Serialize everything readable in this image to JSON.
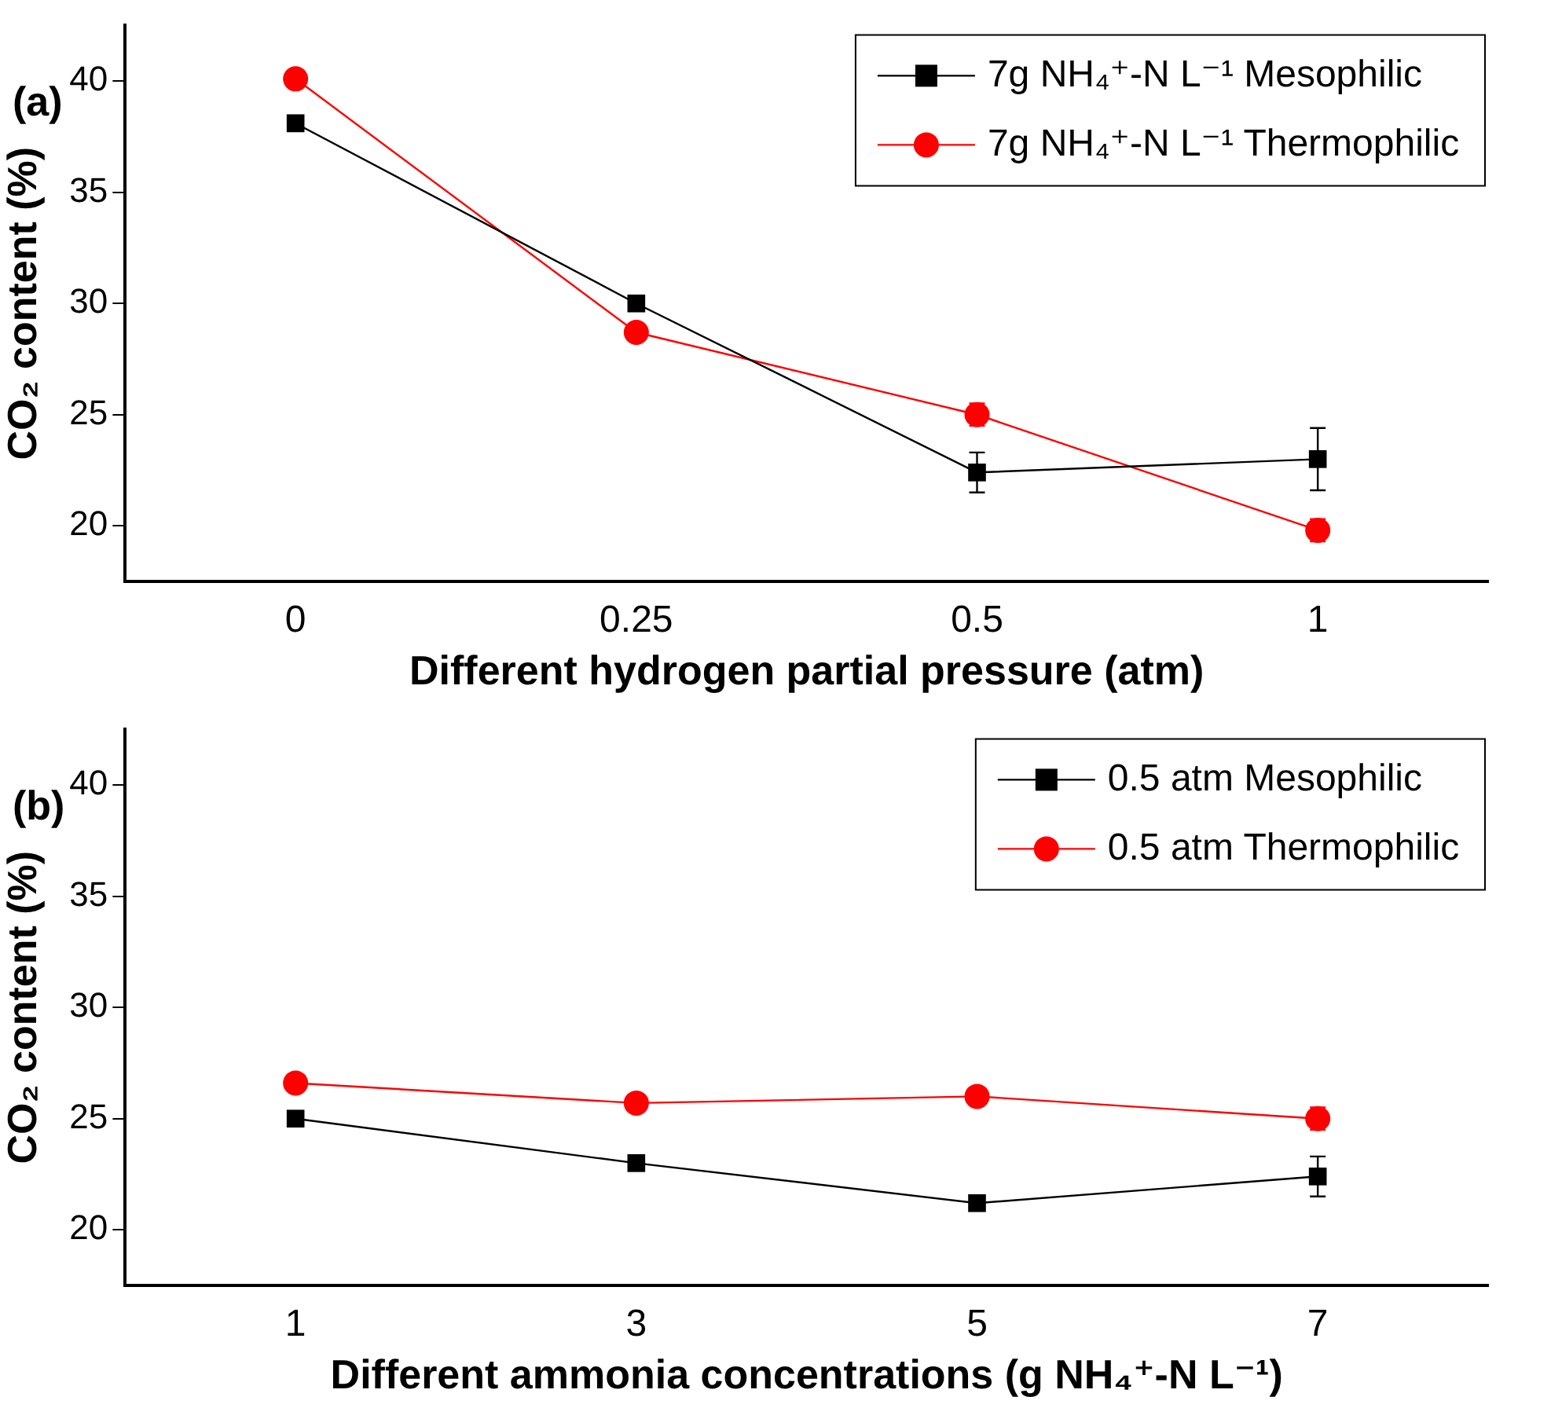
{
  "chart_data": [
    {
      "type": "line",
      "xlabel": "Different hydrogen partial pressure (atm)",
      "ylabel": "CO₂ content (%)",
      "annotations": [
        "(a)"
      ],
      "categories": [
        "0",
        "0.25",
        "0.5",
        "1"
      ],
      "ylim": [
        17.5,
        42.5
      ],
      "yticks": [
        20,
        25,
        30,
        35,
        40
      ],
      "grid": false,
      "legend": "top right",
      "line_style": "solid",
      "series": [
        {
          "name": "7g NH₄⁺-N L⁻¹ Mesophilic",
          "color": "#000000",
          "marker": "square",
          "values": [
            38.1,
            30.0,
            22.4,
            23.0
          ],
          "errors": [
            null,
            null,
            0.9,
            1.4
          ]
        },
        {
          "name": "7g NH₄⁺-N L⁻¹ Thermophilic",
          "color": "#ff0000",
          "marker": "circle",
          "values": [
            40.1,
            28.7,
            25.0,
            19.8
          ],
          "errors": [
            null,
            null,
            0.5,
            0.5
          ]
        }
      ]
    },
    {
      "type": "line",
      "xlabel": "Different ammonia concentrations (g NH₄⁺-N L⁻¹)",
      "ylabel": "CO₂ content (%)",
      "annotations": [
        "(b)"
      ],
      "categories": [
        "1",
        "3",
        "5",
        "7"
      ],
      "ylim": [
        17.5,
        42.5
      ],
      "yticks": [
        20,
        25,
        30,
        35,
        40
      ],
      "grid": false,
      "legend": "top right",
      "line_style": "solid",
      "series": [
        {
          "name": "0.5 atm Mesophilic",
          "color": "#000000",
          "marker": "square",
          "values": [
            25.0,
            23.0,
            21.2,
            22.4
          ],
          "errors": [
            null,
            null,
            null,
            0.9
          ]
        },
        {
          "name": "0.5 atm Thermophilic",
          "color": "#ff0000",
          "marker": "circle",
          "values": [
            26.6,
            25.7,
            26.0,
            25.0
          ],
          "errors": [
            null,
            null,
            null,
            0.5
          ]
        }
      ]
    }
  ]
}
